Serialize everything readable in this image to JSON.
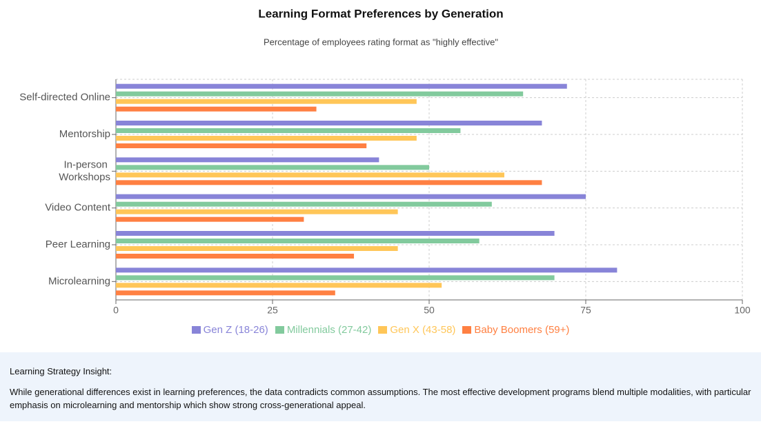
{
  "chart_data": {
    "type": "bar",
    "orientation": "horizontal",
    "title": "Learning Format Preferences by Generation",
    "subtitle": "Percentage of employees rating format as \"highly effective\"",
    "categories": [
      "Self-directed Online",
      "Mentorship",
      "In-person Workshops",
      "Video Content",
      "Peer Learning",
      "Microlearning"
    ],
    "series": [
      {
        "name": "Gen Z (18-26)",
        "color": "#8884d8",
        "values": [
          72,
          68,
          42,
          75,
          70,
          80
        ]
      },
      {
        "name": "Millennials (27-42)",
        "color": "#82ca9d",
        "values": [
          65,
          55,
          50,
          60,
          58,
          70
        ]
      },
      {
        "name": "Gen X (43-58)",
        "color": "#ffc658",
        "values": [
          48,
          48,
          62,
          45,
          45,
          52
        ]
      },
      {
        "name": "Baby Boomers (59+)",
        "color": "#ff8042",
        "values": [
          32,
          40,
          68,
          30,
          38,
          35
        ]
      }
    ],
    "xlim": [
      0,
      100
    ],
    "xticks": [
      0,
      25,
      50,
      75,
      100
    ],
    "grid": true,
    "legend": "bottom"
  },
  "insight": {
    "title": "Learning Strategy Insight:",
    "text": "While generational differences exist in learning preferences, the data contradicts common assumptions. The most effective development programs blend multiple modalities, with particular emphasis on microlearning and mentorship which show strong cross-generational appeal."
  }
}
